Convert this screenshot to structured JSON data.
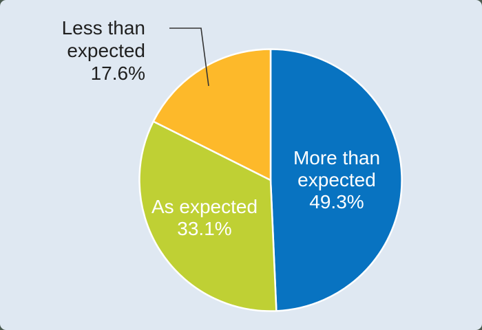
{
  "panel": {
    "background_color": "#dfe8f2",
    "outside_color": "#4b5a50"
  },
  "chart_data": {
    "type": "pie",
    "start_angle_deg": 0,
    "direction": "clockwise",
    "total": 100.0,
    "slices": [
      {
        "label": "More than expected",
        "value": 49.3,
        "color": "#0873c1",
        "label_color": "#ffffff",
        "label_position": "inside"
      },
      {
        "label": "As expected",
        "value": 33.1,
        "color": "#bfd034",
        "label_color": "#ffffff",
        "label_position": "inside"
      },
      {
        "label": "Less than expected",
        "value": 17.6,
        "color": "#fdb92a",
        "label_color": "#1f1f1f",
        "label_position": "outside",
        "leader_line": true
      }
    ],
    "slice_border_color": "#ffffff",
    "leader_line_color": "#333333"
  },
  "labels": {
    "more": {
      "lines": [
        "More than",
        "expected",
        "49.3%"
      ]
    },
    "as": {
      "lines": [
        "As expected",
        "33.1%"
      ]
    },
    "less": {
      "lines": [
        "Less than",
        "expected",
        "17.6%"
      ]
    }
  }
}
